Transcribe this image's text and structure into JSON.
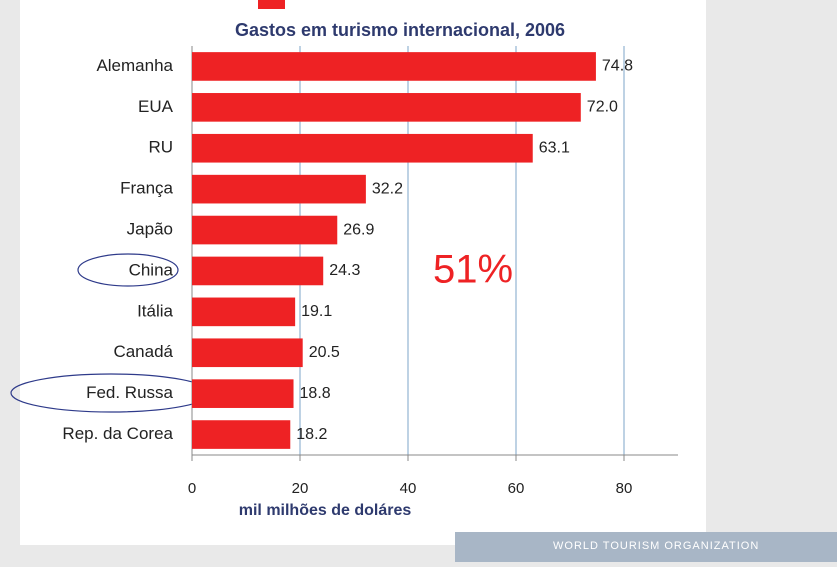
{
  "chart_data": {
    "type": "bar",
    "orientation": "horizontal",
    "title": "Gastos em turismo internacional, 2006",
    "categories": [
      "Alemanha",
      "EUA",
      "RU",
      "França",
      "Japão",
      "China",
      "Itália",
      "Canadá",
      "Fed. Russa",
      "Rep. da Corea"
    ],
    "values": [
      74.8,
      72.0,
      63.1,
      32.2,
      26.9,
      24.3,
      19.1,
      20.5,
      18.8,
      18.2
    ],
    "value_labels": [
      "74.8",
      "72.0",
      "63.1",
      "32.2",
      "26.9",
      "24.3",
      "19.1",
      "20.5",
      "18.8",
      "18.2"
    ],
    "color": "#ee2224",
    "xlim": [
      0,
      90
    ],
    "xticks": [
      0,
      20,
      40,
      60,
      80
    ],
    "grid": true,
    "grid_color": "#a9c4dc",
    "xlabel": "mil milhões de doláres",
    "annotation": "51%"
  },
  "footer": "WORLD TOURISM ORGANIZATION"
}
